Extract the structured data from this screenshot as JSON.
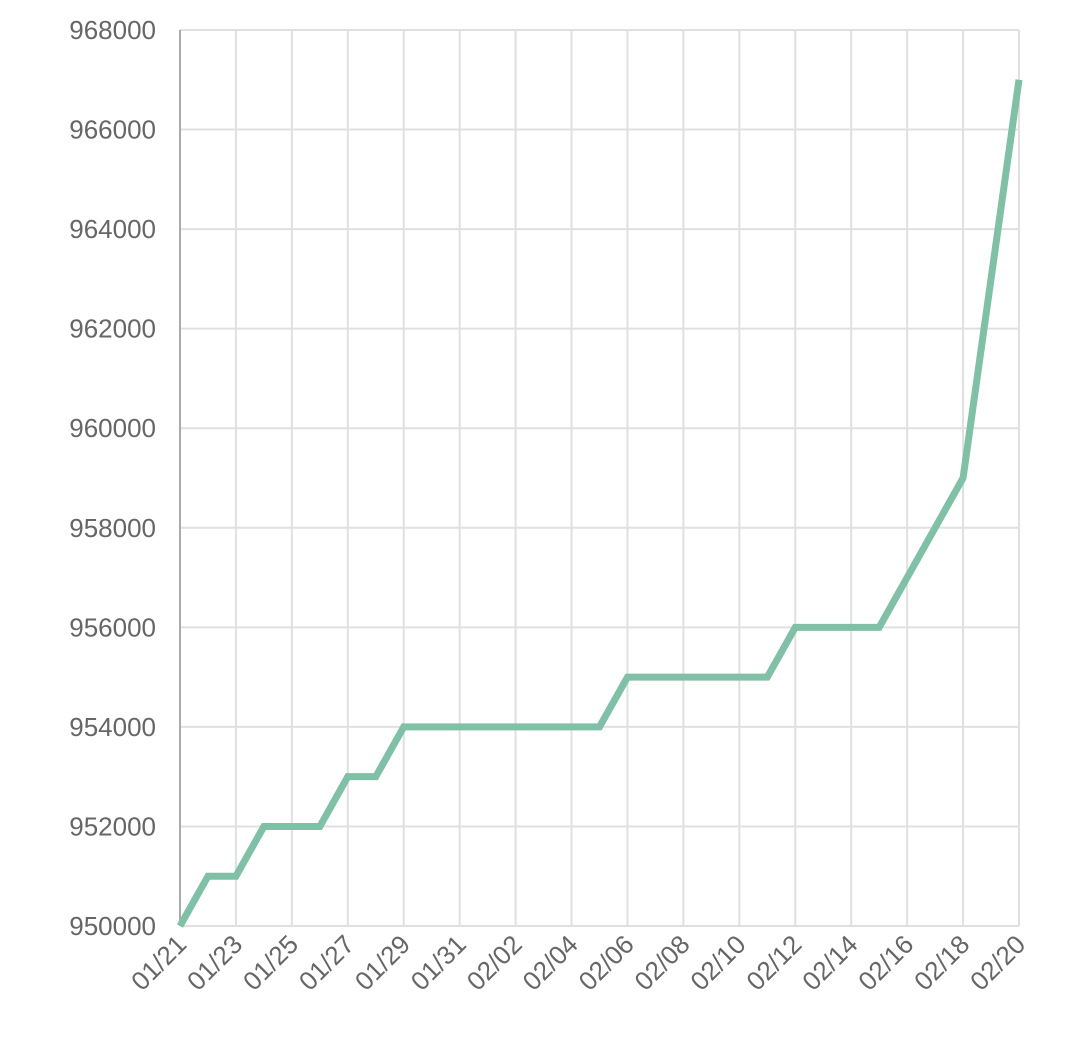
{
  "chart_data": {
    "type": "line",
    "categories": [
      "01/21",
      null,
      "01/23",
      null,
      "01/25",
      null,
      "01/27",
      null,
      "01/29",
      null,
      "01/31",
      null,
      "02/02",
      null,
      "02/04",
      null,
      "02/06",
      null,
      "02/08",
      null,
      "02/10",
      null,
      "02/12",
      null,
      "02/14",
      null,
      "02/16",
      null,
      "02/18",
      null,
      "02/20"
    ],
    "series": [
      {
        "color": "#7fc0a6",
        "values": [
          950000,
          951000,
          951000,
          952000,
          952000,
          952000,
          953000,
          953000,
          954000,
          954000,
          954000,
          954000,
          954000,
          954000,
          954000,
          954000,
          955000,
          955000,
          955000,
          955000,
          955000,
          955000,
          956000,
          956000,
          956000,
          956000,
          957000,
          958000,
          959000,
          963000,
          967000
        ]
      }
    ],
    "ylim": [
      950000,
      968000
    ],
    "yticks": [
      950000,
      952000,
      954000,
      956000,
      958000,
      960000,
      962000,
      964000,
      966000,
      968000
    ],
    "grid": true
  }
}
